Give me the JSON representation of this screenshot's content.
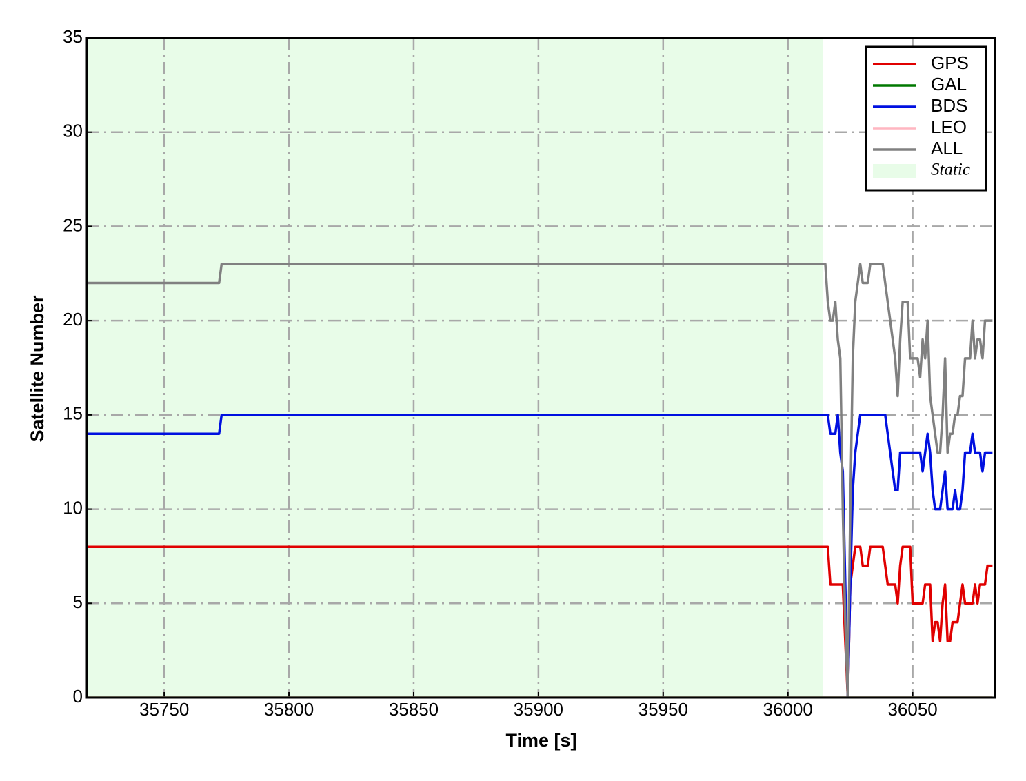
{
  "chart_data": {
    "type": "line",
    "xlabel": "Time [s]",
    "ylabel": "Satellite Number",
    "xlim": [
      35719,
      36083
    ],
    "ylim": [
      0,
      35
    ],
    "xticks": [
      35750,
      35800,
      35850,
      35900,
      35950,
      36000,
      36050
    ],
    "yticks": [
      0,
      5,
      10,
      15,
      20,
      25,
      30,
      35
    ],
    "grid": true,
    "legend": "upper right",
    "spans": [
      {
        "x0": 35719,
        "x1": 36014,
        "label": "Static",
        "color": "#e8fce8"
      }
    ],
    "x": [
      35719,
      35772,
      35773,
      36015,
      36016,
      36017,
      36018,
      36019,
      36020,
      36021,
      36022,
      36023,
      36024,
      36025,
      36026,
      36027,
      36028,
      36029,
      36030,
      36031,
      36032,
      36033,
      36034,
      36035,
      36036,
      36037,
      36038,
      36039,
      36040,
      36041,
      36042,
      36043,
      36044,
      36045,
      36046,
      36047,
      36048,
      36049,
      36050,
      36051,
      36052,
      36053,
      36054,
      36055,
      36056,
      36057,
      36058,
      36059,
      36060,
      36061,
      36062,
      36063,
      36064,
      36065,
      36066,
      36067,
      36068,
      36069,
      36070,
      36071,
      36072,
      36073,
      36074,
      36075,
      36076,
      36077,
      36078,
      36079,
      36080,
      36081,
      36082
    ],
    "series": [
      {
        "name": "GPS",
        "color": "#e00000",
        "values": [
          8,
          8,
          8,
          8,
          8,
          6,
          6,
          6,
          6,
          6,
          6,
          3,
          0,
          6,
          7,
          8,
          8,
          8,
          7,
          7,
          7,
          8,
          8,
          8,
          8,
          8,
          8,
          7,
          6,
          6,
          6,
          6,
          5,
          7,
          8,
          8,
          8,
          8,
          5,
          5,
          5,
          5,
          5,
          6,
          6,
          6,
          3,
          4,
          4,
          3,
          5,
          6,
          3,
          3,
          4,
          4,
          4,
          5,
          6,
          5,
          5,
          5,
          5,
          6,
          5,
          6,
          6,
          6,
          7,
          7,
          7
        ]
      },
      {
        "name": "GAL",
        "color": "#007800",
        "values": [
          0,
          0,
          0,
          0,
          0,
          0,
          0,
          0,
          0,
          0,
          0,
          0,
          0,
          0,
          0,
          0,
          0,
          0,
          0,
          0,
          0,
          0,
          0,
          0,
          0,
          0,
          0,
          0,
          0,
          0,
          0,
          0,
          0,
          0,
          0,
          0,
          0,
          0,
          0,
          0,
          0,
          0,
          0,
          0,
          0,
          0,
          0,
          0,
          0,
          0,
          0,
          0,
          0,
          0,
          0,
          0,
          0,
          0,
          0,
          0,
          0,
          0,
          0,
          0,
          0,
          0,
          0,
          0,
          0,
          0,
          0
        ]
      },
      {
        "name": "BDS",
        "color": "#0010e0",
        "values": [
          14,
          14,
          15,
          15,
          15,
          14,
          14,
          14,
          15,
          13,
          12,
          6,
          0,
          6,
          11,
          13,
          14,
          15,
          15,
          15,
          15,
          15,
          15,
          15,
          15,
          15,
          15,
          15,
          14,
          13,
          12,
          11,
          11,
          13,
          13,
          13,
          13,
          13,
          13,
          13,
          13,
          13,
          12,
          13,
          14,
          13,
          11,
          10,
          10,
          10,
          11,
          12,
          10,
          10,
          10,
          11,
          10,
          10,
          11,
          13,
          13,
          13,
          14,
          13,
          13,
          13,
          12,
          13,
          13,
          13,
          13
        ]
      },
      {
        "name": "LEO",
        "color": "#ffb6c1",
        "values": [
          0,
          0,
          0,
          0,
          0,
          0,
          0,
          0,
          0,
          0,
          0,
          0,
          0,
          0,
          0,
          0,
          0,
          0,
          0,
          0,
          0,
          0,
          0,
          0,
          0,
          0,
          0,
          0,
          0,
          0,
          0,
          0,
          0,
          0,
          0,
          0,
          0,
          0,
          0,
          0,
          0,
          0,
          0,
          0,
          0,
          0,
          0,
          0,
          0,
          0,
          0,
          0,
          0,
          0,
          0,
          0,
          0,
          0,
          0,
          0,
          0,
          0,
          0,
          0,
          0,
          0,
          0,
          0,
          0,
          0,
          0
        ]
      },
      {
        "name": "ALL",
        "color": "#808080",
        "values": [
          22,
          22,
          23,
          23,
          21,
          20,
          20,
          21,
          19,
          18,
          10,
          4,
          0,
          10,
          18,
          21,
          22,
          23,
          22,
          22,
          22,
          23,
          23,
          23,
          23,
          23,
          23,
          22,
          21,
          20,
          19,
          18,
          16,
          19,
          21,
          21,
          21,
          18,
          18,
          18,
          18,
          17,
          19,
          18,
          20,
          16,
          15,
          14,
          13,
          13,
          15,
          18,
          13,
          14,
          14,
          15,
          15,
          16,
          16,
          18,
          18,
          18,
          20,
          18,
          19,
          19,
          18,
          20,
          20,
          20,
          20
        ]
      }
    ]
  }
}
